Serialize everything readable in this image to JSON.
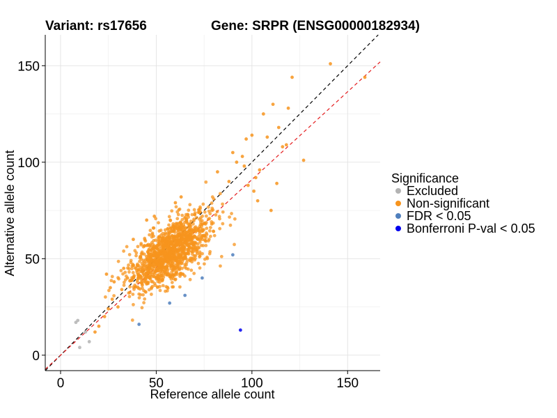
{
  "chart_data": {
    "type": "scatter",
    "title_variant": "Variant: rs17656",
    "title_gene": "Gene: SRPR (ENSG00000182934)",
    "xlabel": "Reference allele count",
    "ylabel": "Alternative allele count",
    "xlim": [
      -8,
      167
    ],
    "ylim": [
      -8,
      166
    ],
    "xticks": [
      0,
      50,
      100,
      150
    ],
    "yticks": [
      0,
      50,
      100,
      150
    ],
    "grid": true,
    "reference_lines": [
      {
        "name": "identity",
        "slope": 1.0,
        "intercept": 0,
        "color": "#000000",
        "style": "dashed"
      },
      {
        "name": "fit",
        "slope": 0.91,
        "intercept": 0,
        "color": "#e41a1c",
        "style": "dashed"
      }
    ],
    "legend": {
      "title": "Significance",
      "position": "right",
      "entries": [
        {
          "label": "Excluded",
          "color": "#b3b3b3"
        },
        {
          "label": "Non-significant",
          "color": "#f7941d"
        },
        {
          "label": "FDR < 0.05",
          "color": "#4f7fbd"
        },
        {
          "label": "Bonferroni P-val < 0.05",
          "color": "#0000ee"
        }
      ]
    },
    "series": [
      {
        "name": "Excluded",
        "points": [
          [
            8,
            17
          ],
          [
            9,
            18
          ],
          [
            10,
            4
          ],
          [
            15,
            7
          ],
          [
            13,
            12
          ]
        ]
      },
      {
        "name": "Non-significant",
        "note": "~1300 points forming a cloud centred near (57,53); listed points are notable ones, remainder described by cloud parameters",
        "points": [
          [
            18,
            12
          ],
          [
            20,
            15
          ],
          [
            23,
            20
          ],
          [
            25,
            24
          ],
          [
            27,
            29
          ],
          [
            30,
            25
          ],
          [
            35,
            40
          ],
          [
            26,
            35
          ],
          [
            28,
            38
          ],
          [
            32,
            34
          ],
          [
            33,
            45
          ],
          [
            24,
            42
          ],
          [
            38,
            60
          ],
          [
            45,
            70
          ],
          [
            49,
            72
          ],
          [
            60,
            79
          ],
          [
            63,
            82
          ],
          [
            79,
            68
          ],
          [
            82,
            95
          ],
          [
            88,
            90
          ],
          [
            90,
            105
          ],
          [
            92,
            100
          ],
          [
            95,
            103
          ],
          [
            96,
            98
          ],
          [
            97,
            112
          ],
          [
            98,
            88
          ],
          [
            100,
            114
          ],
          [
            101,
            85
          ],
          [
            102,
            92
          ],
          [
            103,
            80
          ],
          [
            104,
            96
          ],
          [
            106,
            125
          ],
          [
            108,
            113
          ],
          [
            110,
            75
          ],
          [
            111,
            130
          ],
          [
            113,
            89
          ],
          [
            114,
            118
          ],
          [
            116,
            108
          ],
          [
            118,
            109
          ],
          [
            119,
            128
          ],
          [
            121,
            144
          ],
          [
            127,
            101
          ],
          [
            141,
            151
          ],
          [
            159,
            144
          ]
        ],
        "cloud": {
          "count": 1300,
          "center": [
            57,
            53
          ],
          "sd_major": 13,
          "sd_minor": 6,
          "slope": 0.93
        }
      },
      {
        "name": "FDR < 0.05",
        "points": [
          [
            41,
            16
          ],
          [
            57,
            27
          ],
          [
            65,
            31
          ],
          [
            74,
            40
          ],
          [
            90,
            52
          ]
        ]
      },
      {
        "name": "Bonferroni P-val < 0.05",
        "points": [
          [
            94,
            13
          ]
        ]
      }
    ]
  }
}
